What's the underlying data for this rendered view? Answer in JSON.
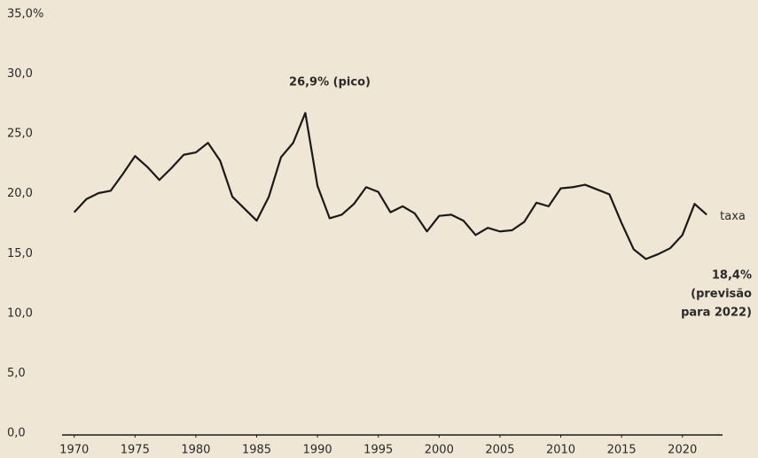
{
  "chart_data": {
    "type": "line",
    "x": [
      1970,
      1971,
      1972,
      1973,
      1974,
      1975,
      1976,
      1977,
      1978,
      1979,
      1980,
      1981,
      1982,
      1983,
      1984,
      1985,
      1986,
      1987,
      1988,
      1989,
      1990,
      1991,
      1992,
      1993,
      1994,
      1995,
      1996,
      1997,
      1998,
      1999,
      2000,
      2001,
      2002,
      2003,
      2004,
      2005,
      2006,
      2007,
      2008,
      2009,
      2010,
      2011,
      2012,
      2013,
      2014,
      2015,
      2016,
      2017,
      2018,
      2019,
      2020,
      2021,
      2022
    ],
    "series": [
      {
        "name": "taxa",
        "color": "#1a1a1a",
        "values": [
          18.6,
          19.7,
          20.2,
          20.4,
          21.8,
          23.3,
          22.4,
          21.3,
          22.3,
          23.4,
          23.6,
          24.4,
          22.9,
          19.9,
          18.9,
          17.9,
          19.9,
          23.2,
          24.4,
          26.9,
          20.8,
          18.1,
          18.4,
          19.3,
          20.7,
          20.3,
          18.6,
          19.1,
          18.5,
          17.0,
          18.3,
          18.4,
          17.9,
          16.7,
          17.3,
          17.0,
          17.1,
          17.8,
          19.4,
          19.1,
          20.6,
          20.7,
          20.9,
          20.5,
          20.1,
          17.7,
          15.5,
          14.7,
          15.1,
          15.6,
          16.7,
          19.3,
          18.4
        ]
      }
    ],
    "xlim": [
      1969,
      2023.3
    ],
    "xticks": [
      1970,
      1975,
      1980,
      1985,
      1990,
      1995,
      2000,
      2005,
      2010,
      2015,
      2020
    ],
    "ylim": [
      0,
      35
    ],
    "yticks": [
      {
        "value": 0,
        "label": "0,0"
      },
      {
        "value": 5,
        "label": "5,0"
      },
      {
        "value": 10,
        "label": "10,0"
      },
      {
        "value": 15,
        "label": "15,0"
      },
      {
        "value": 20,
        "label": "20,0"
      },
      {
        "value": 25,
        "label": "25,0"
      },
      {
        "value": 30,
        "label": "30,0"
      },
      {
        "value": 35,
        "label": "35,0%"
      }
    ],
    "grid": false,
    "annotations": {
      "peak": "26,9% (pico)",
      "forecast": [
        "18,4%",
        "(previsão",
        "para 2022)"
      ]
    }
  }
}
